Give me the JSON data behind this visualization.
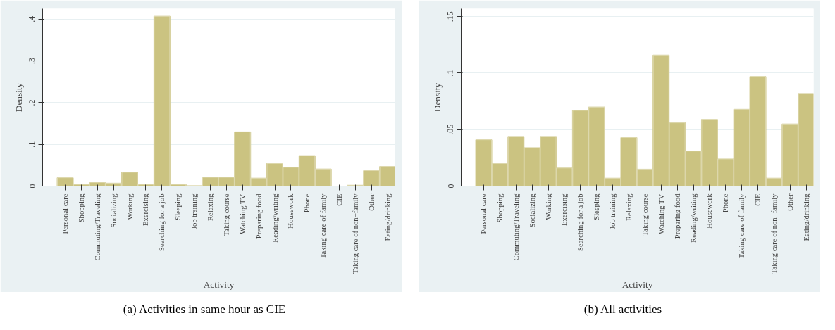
{
  "chart_data": [
    {
      "type": "bar",
      "xlabel": "Activity",
      "ylabel": "Density",
      "color": "#cbc381",
      "grid": "y",
      "categories": [
        "Personal care",
        "Shopping",
        "Commuting/Traveling",
        "Socializing",
        "Working",
        "Exercising",
        "Searching for a job",
        "Sleeping",
        "Job training",
        "Relaxing",
        "Taking course",
        "Watching TV",
        "Preparing food",
        "Reading/writing",
        "Housework",
        "Phone",
        "Taking care of family",
        "CIE",
        "Taking care of non−family",
        "Other",
        "Eating/drinking"
      ],
      "values": [
        0.02,
        0.004,
        0.009,
        0.007,
        0.033,
        0.004,
        0.407,
        0.004,
        0.001,
        0.021,
        0.021,
        0.13,
        0.019,
        0.054,
        0.045,
        0.073,
        0.041,
        0,
        0.002,
        0.037,
        0.047
      ],
      "ylim": [
        0,
        0.425
      ],
      "yticks": [
        {
          "value": 0,
          "label": "0"
        },
        {
          "value": 0.1,
          "label": ".1"
        },
        {
          "value": 0.2,
          "label": ".2"
        },
        {
          "value": 0.3,
          "label": ".3"
        },
        {
          "value": 0.4,
          "label": ".4"
        }
      ],
      "annotations": [
        "(a) Activities in same hour as CIE"
      ]
    },
    {
      "type": "bar",
      "xlabel": "Activity",
      "ylabel": "Density",
      "color": "#cbc381",
      "grid": "y",
      "categories": [
        "Personal care",
        "Shopping",
        "Commuting/Traveling",
        "Socializing",
        "Working",
        "Exercising",
        "Searching for a job",
        "Sleeping",
        "Job training",
        "Relaxing",
        "Taking course",
        "Watching TV",
        "Preparing food",
        "Reading/writing",
        "Housework",
        "Phone",
        "Taking care of family",
        "CIE",
        "Taking care of non−family",
        "Other",
        "Eating/drinking"
      ],
      "values": [
        0.041,
        0.02,
        0.044,
        0.034,
        0.044,
        0.016,
        0.067,
        0.07,
        0.007,
        0.043,
        0.015,
        0.116,
        0.056,
        0.031,
        0.059,
        0.024,
        0.068,
        0.097,
        0.007,
        0.055,
        0.082
      ],
      "ylim": [
        0,
        0.157
      ],
      "yticks": [
        {
          "value": 0,
          "label": "0"
        },
        {
          "value": 0.05,
          "label": ".05"
        },
        {
          "value": 0.1,
          "label": ".1"
        },
        {
          "value": 0.15,
          "label": ".15"
        }
      ],
      "annotations": [
        "(b) All activities"
      ]
    }
  ]
}
